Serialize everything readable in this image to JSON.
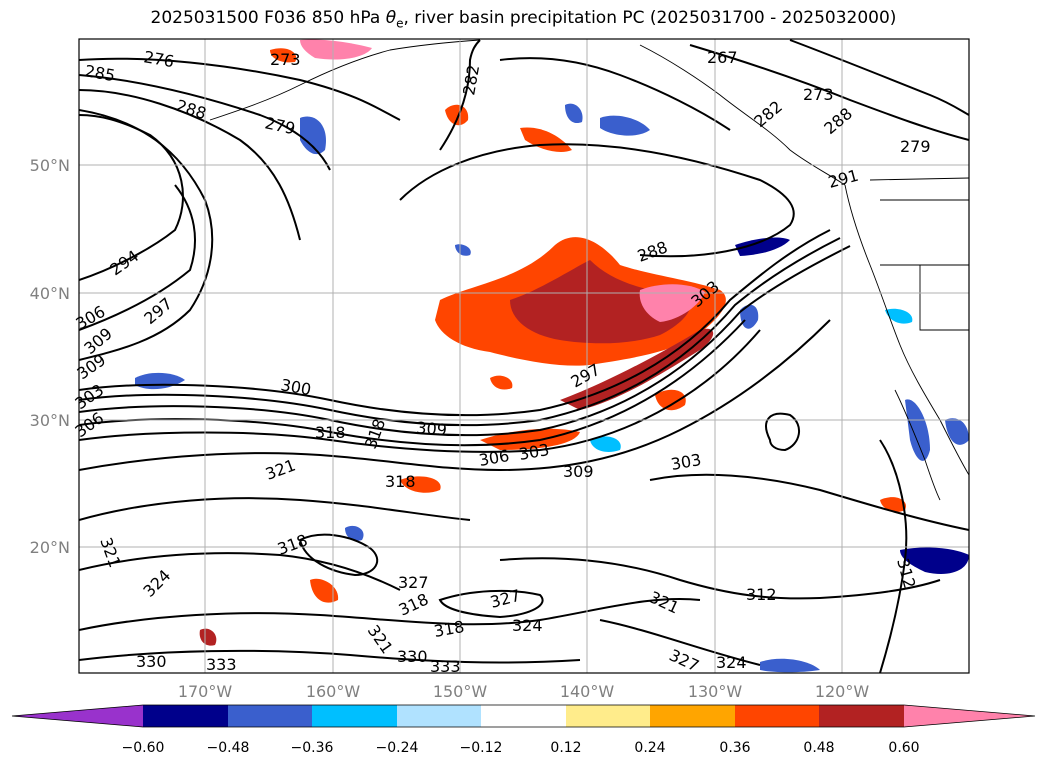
{
  "title_prefix": "2025031500 F036 850 hPa ",
  "title_symbol": "θ",
  "title_subscript": "e",
  "title_suffix": ", river basin precipitation PC (2025031700 - 2025032000)",
  "latitude_labels": [
    "50°N",
    "40°N",
    "30°N",
    "20°N"
  ],
  "longitude_labels": [
    "170°W",
    "160°W",
    "150°W",
    "140°W",
    "130°W",
    "120°W"
  ],
  "contour_labels": [
    "276",
    "273",
    "285",
    "288",
    "279",
    "282",
    "267",
    "273",
    "282",
    "288",
    "279",
    "291",
    "288",
    "294",
    "297",
    "306",
    "309",
    "300",
    "303",
    "309",
    "303",
    "306",
    "297",
    "318",
    "318",
    "309",
    "306",
    "303",
    "309",
    "321",
    "318",
    "321",
    "318",
    "324",
    "327",
    "318",
    "327",
    "321",
    "318",
    "324",
    "321",
    "330",
    "333",
    "330",
    "333",
    "327",
    "324",
    "312",
    "312",
    "303"
  ],
  "colorbar": {
    "colors": [
      "#9932cc",
      "#00008b",
      "#3a5fcd",
      "#00bfff",
      "#b0e2ff",
      "#ffffff",
      "#ffec8b",
      "#ffa500",
      "#ff4500",
      "#b22222",
      "#ff82ab"
    ],
    "tick_labels": [
      "−0.60",
      "−0.48",
      "−0.36",
      "−0.24",
      "−0.12",
      "0.12",
      "0.24",
      "0.36",
      "0.48",
      "0.60"
    ]
  },
  "colors": {
    "gridline": "#b0b0b0",
    "contour": "#000000",
    "axis_label": "#808080"
  }
}
